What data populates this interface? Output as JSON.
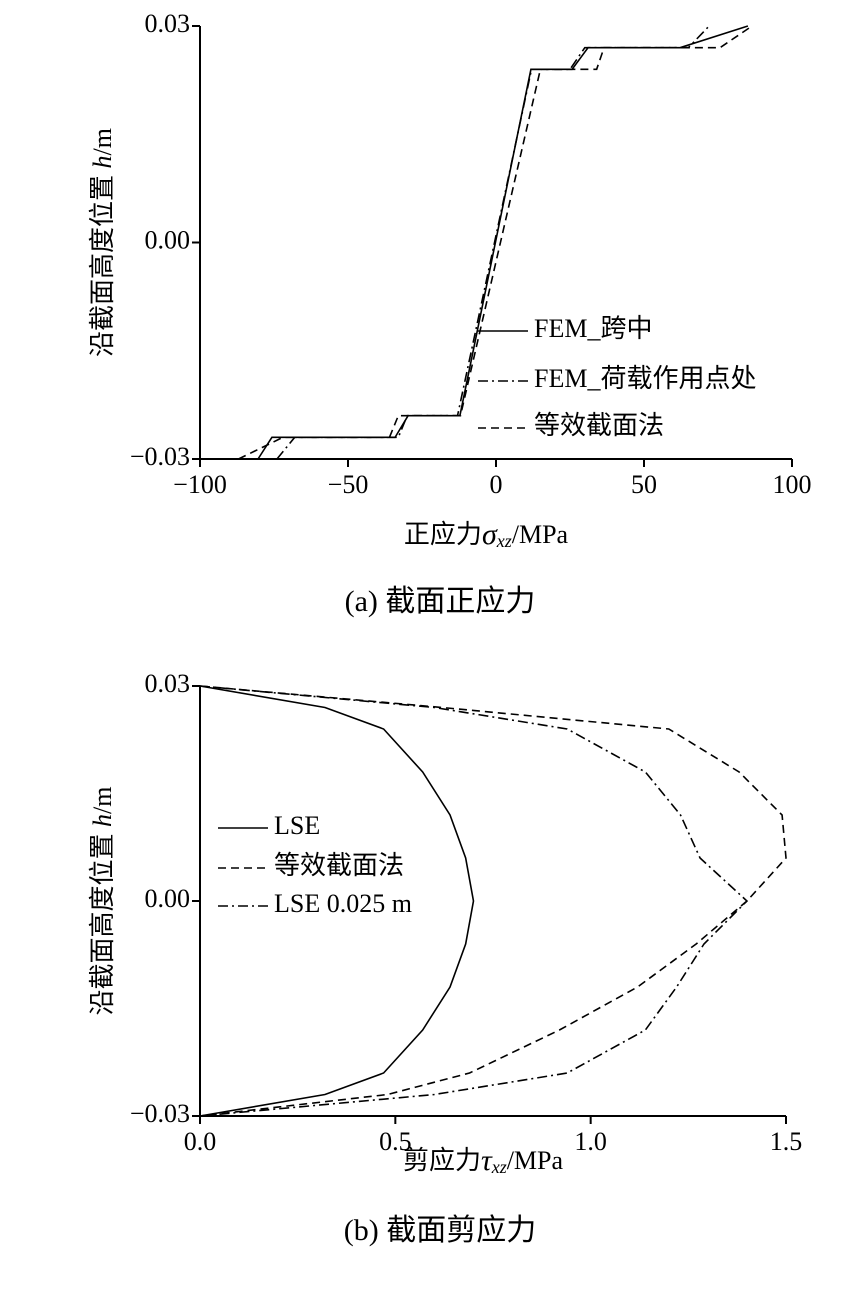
{
  "chart_data": [
    {
      "type": "line",
      "xlabel": [
        "正应力",
        "σ",
        "xz",
        "/MPa"
      ],
      "ylabel": [
        "沿截面高度位置 ",
        "h",
        "/m"
      ],
      "caption": "(a)  截面正应力",
      "xlim": [
        -100,
        100
      ],
      "xticks": [
        {
          "value": -100,
          "label": "−100"
        },
        {
          "value": -50,
          "label": "−50"
        },
        0,
        50,
        100
      ],
      "ylim": [
        -0.03,
        0.03
      ],
      "yticks": [
        {
          "value": -0.03,
          "label": "−0.03"
        },
        {
          "value": 0,
          "label": "0.00"
        },
        0.03
      ],
      "legend": "lower right",
      "series": [
        {
          "name": "FEM_跨中",
          "color": "#000000",
          "dash": "solid",
          "x": [
            -80.4,
            -75.7,
            -34.1,
            -29.7,
            -12.2,
            11.8,
            25.7,
            31.1,
            62.2,
            85.1
          ],
          "values": [
            -0.03,
            -0.027,
            -0.027,
            -0.024,
            -0.024,
            0.024,
            0.024,
            0.027,
            0.027,
            0.03
          ]
        },
        {
          "name": "FEM_荷载作用点处",
          "color": "#000000",
          "dash": "dashdot",
          "x": [
            -74,
            -68,
            -33,
            -30,
            -13,
            12,
            25,
            30,
            65,
            72
          ],
          "values": [
            -0.03,
            -0.027,
            -0.027,
            -0.024,
            -0.024,
            0.024,
            0.024,
            0.027,
            0.027,
            0.03
          ]
        },
        {
          "name": "等效截面法",
          "color": "#000000",
          "dash": "dashed",
          "x": [
            -87,
            -72,
            -36,
            -33,
            -12,
            15,
            34,
            36.5,
            75.7,
            86.5
          ],
          "values": [
            -0.03,
            -0.027,
            -0.027,
            -0.024,
            -0.024,
            0.024,
            0.024,
            0.027,
            0.027,
            0.03
          ]
        }
      ]
    },
    {
      "type": "line",
      "xlabel": [
        "剪应力",
        "τ",
        "xz",
        "/MPa"
      ],
      "ylabel": [
        "沿截面高度位置 ",
        "h",
        "/m"
      ],
      "caption": "(b)  截面剪应力",
      "xlim": [
        0,
        1.5
      ],
      "xticks": [
        {
          "value": 0,
          "label": "0.0"
        },
        0.5,
        {
          "value": 1,
          "label": "1.0"
        },
        1.5
      ],
      "ylim": [
        -0.03,
        0.03
      ],
      "yticks": [
        {
          "value": -0.03,
          "label": "−0.03"
        },
        {
          "value": 0,
          "label": "0.00"
        },
        0.03
      ],
      "legend": "upper left",
      "series": [
        {
          "name": "LSE",
          "color": "#000000",
          "dash": "solid",
          "x": [
            0,
            0.32,
            0.47,
            0.57,
            0.64,
            0.68,
            0.7,
            0.68,
            0.64,
            0.57,
            0.47,
            0.32,
            0
          ],
          "values": [
            0.03,
            0.027,
            0.024,
            0.018,
            0.012,
            0.006,
            0,
            -0.006,
            -0.012,
            -0.018,
            -0.024,
            -0.027,
            -0.03
          ]
        },
        {
          "name": "等效截面法",
          "color": "#000000",
          "dash": "dashed",
          "x": [
            0,
            0.62,
            1.2,
            1.38,
            1.49,
            1.5,
            1.4,
            1.27,
            1.12,
            0.92,
            0.69,
            0.48,
            0
          ],
          "values": [
            0.03,
            0.027,
            0.024,
            0.018,
            0.012,
            0.006,
            0,
            -0.006,
            -0.012,
            -0.018,
            -0.024,
            -0.027,
            -0.03
          ]
        },
        {
          "name": "LSE 0.025 m",
          "color": "#000000",
          "dash": "dashdot",
          "x": [
            0,
            0.6,
            0.94,
            1.14,
            1.23,
            1.28,
            1.4,
            1.29,
            1.22,
            1.14,
            0.94,
            0.6,
            0
          ],
          "values": [
            0.03,
            0.027,
            0.024,
            0.018,
            0.012,
            0.006,
            0,
            -0.006,
            -0.012,
            -0.018,
            -0.024,
            -0.027,
            -0.03
          ]
        }
      ]
    }
  ]
}
